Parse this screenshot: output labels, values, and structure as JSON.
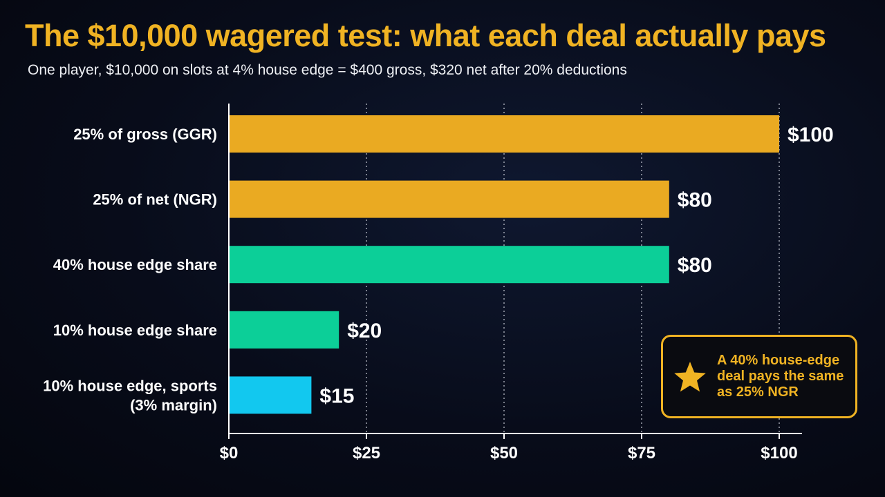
{
  "title": "The $10,000 wagered test: what each deal actually pays",
  "subtitle": "One player, $10,000 on slots at 4% house edge = $400 gross, $320 net after 20% deductions",
  "callout": {
    "icon": "star-icon",
    "text": "A 40% house-edge deal pays the same as 25% NGR"
  },
  "chart_data": {
    "type": "bar",
    "orientation": "horizontal",
    "categories": [
      [
        "25% of gross (GGR)"
      ],
      [
        "25% of net (NGR)"
      ],
      [
        "40% house edge share"
      ],
      [
        "10% house edge share"
      ],
      [
        "10% house edge, sports",
        "(3% margin)"
      ]
    ],
    "values": [
      100,
      80,
      80,
      20,
      15
    ],
    "value_labels": [
      "$100",
      "$80",
      "$80",
      "$20",
      "$15"
    ],
    "colors": [
      "#eaaa22",
      "#eaaa22",
      "#0ccf98",
      "#0ccf98",
      "#12c8ef"
    ],
    "xlim": [
      0,
      100
    ],
    "x_ticks": [
      0,
      25,
      50,
      75,
      100
    ],
    "x_tick_labels": [
      "$0",
      "$25",
      "$50",
      "$75",
      "$100"
    ],
    "grid": "vertical dotted",
    "xlabel": "",
    "ylabel": ""
  }
}
